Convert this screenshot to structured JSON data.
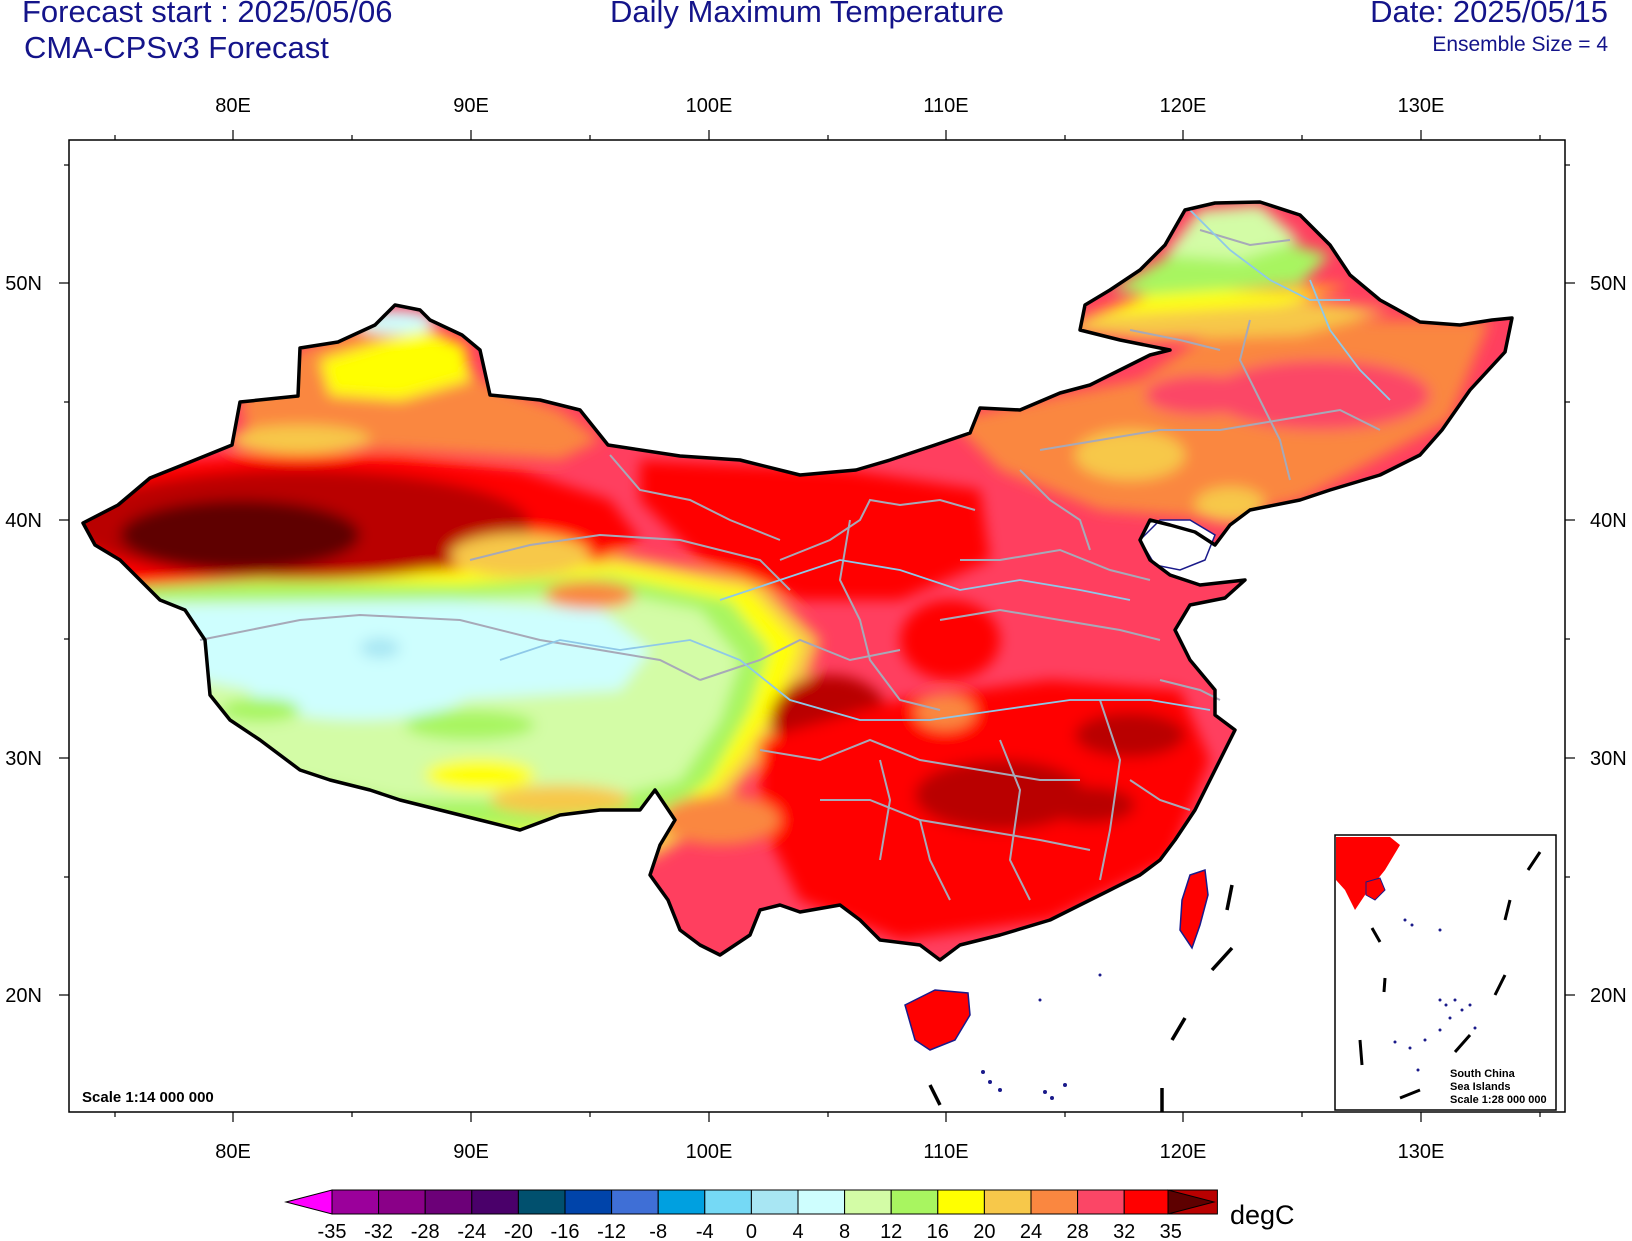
{
  "header": {
    "forecast_start": "Forecast start : 2025/05/06",
    "model": "CMA-CPSv3 Forecast",
    "title": "Daily Maximum Temperature",
    "date": "Date: 2025/05/15",
    "ensemble": "Ensemble Size = 4"
  },
  "axes": {
    "lon_labels": [
      "80E",
      "90E",
      "100E",
      "110E",
      "120E",
      "130E"
    ],
    "lat_labels": [
      "50N",
      "40N",
      "30N",
      "20N"
    ]
  },
  "map": {
    "scale": "Scale 1:14 000 000",
    "inset_lines": [
      "South China",
      "Sea Islands",
      "Scale 1:28 000 000"
    ]
  },
  "colorbar": {
    "units": "degC",
    "labels": [
      "-35",
      "-32",
      "-28",
      "-24",
      "-20",
      "-16",
      "-12",
      "-8",
      "-4",
      "0",
      "4",
      "8",
      "12",
      "16",
      "20",
      "24",
      "28",
      "32",
      "35"
    ],
    "colors": [
      "#9b009b",
      "#8a0088",
      "#6c0078",
      "#4a006a",
      "#01506e",
      "#0044aa",
      "#3f6fd6",
      "#00a0e0",
      "#75d9f5",
      "#a8e6f3",
      "#cefefe",
      "#d3fca6",
      "#a8f560",
      "#ffff00",
      "#f7c84a",
      "#fa8740",
      "#fb4666",
      "#ff0000",
      "#b90000"
    ],
    "low_color": "#ff00ff",
    "high_color": "#5e0000"
  }
}
